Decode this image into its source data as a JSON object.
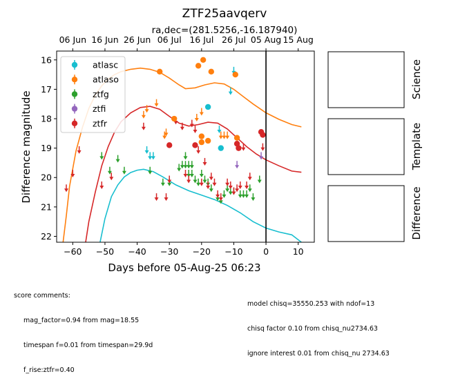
{
  "chart_data": {
    "type": "scatter",
    "title": "ZTF25aavqerv",
    "subtitle": "ra,dec=(281.5256,-16.187940)",
    "xlabel": "Days before 05-Aug-25 06:23",
    "ylabel": "Difference magnitude",
    "xlim": [
      -65,
      15
    ],
    "ylim": [
      22.2,
      15.7
    ],
    "x_ticks": [
      -60,
      -50,
      -40,
      -30,
      -20,
      -10,
      0,
      10
    ],
    "y_ticks": [
      16,
      17,
      18,
      19,
      20,
      21,
      22
    ],
    "top_axis_ticks": [
      {
        "x": -60,
        "label": "06 Jun"
      },
      {
        "x": -50,
        "label": "16 Jun"
      },
      {
        "x": -40,
        "label": "26 Jun"
      },
      {
        "x": -30,
        "label": "06 Jul"
      },
      {
        "x": -20,
        "label": "16 Jul"
      },
      {
        "x": -10,
        "label": "26 Jul"
      },
      {
        "x": 0,
        "label": "05 Aug"
      },
      {
        "x": 10,
        "label": "15 Aug"
      }
    ],
    "legend_placement": "top-left",
    "vline_x": 0,
    "series": [
      {
        "name": "atlasc",
        "color": "#17becf",
        "detections": [
          [
            -18,
            17.6
          ],
          [
            -14,
            19.0
          ]
        ],
        "upper_limits": [
          [
            -37,
            19.1
          ],
          [
            -36,
            19.3
          ],
          [
            -35,
            19.3
          ],
          [
            -14.5,
            18.4
          ],
          [
            -11,
            17.1
          ],
          [
            -10,
            16.4
          ]
        ]
      },
      {
        "name": "atlaso",
        "color": "#ff7f0e",
        "detections": [
          [
            -33,
            16.4
          ],
          [
            -28.5,
            18.0
          ],
          [
            -21,
            16.2
          ],
          [
            -19.5,
            16.0
          ],
          [
            -17,
            16.4
          ],
          [
            -9.5,
            16.5
          ],
          [
            -20,
            18.6
          ],
          [
            -20,
            18.8
          ],
          [
            -18,
            18.75
          ],
          [
            -9,
            18.65
          ]
        ],
        "upper_limits": [
          [
            -38,
            17.9
          ],
          [
            -37,
            17.7
          ],
          [
            -34,
            17.5
          ],
          [
            -31.5,
            18.6
          ],
          [
            -31,
            18.5
          ],
          [
            -21.5,
            18.0
          ],
          [
            -20,
            17.8
          ],
          [
            -14,
            18.6
          ],
          [
            -13,
            18.6
          ],
          [
            -12,
            18.6
          ]
        ]
      },
      {
        "name": "ztfg",
        "color": "#2ca02c",
        "detections": [],
        "upper_limits": [
          [
            -51,
            19.3
          ],
          [
            -48.5,
            19.8
          ],
          [
            -46,
            19.4
          ],
          [
            -44,
            19.8
          ],
          [
            -36,
            19.8
          ],
          [
            -32,
            20.2
          ],
          [
            -30,
            20.2
          ],
          [
            -27,
            19.7
          ],
          [
            -26,
            19.6
          ],
          [
            -25,
            19.3
          ],
          [
            -25,
            19.6
          ],
          [
            -24,
            19.6
          ],
          [
            -24,
            19.9
          ],
          [
            -23,
            19.6
          ],
          [
            -23,
            19.9
          ],
          [
            -22,
            20.1
          ],
          [
            -21,
            20.2
          ],
          [
            -20,
            19.9
          ],
          [
            -19,
            20.1
          ],
          [
            -18,
            20.2
          ],
          [
            -17,
            20.4
          ],
          [
            -15,
            20.7
          ],
          [
            -14,
            20.8
          ],
          [
            -13,
            20.6
          ],
          [
            -12,
            20.4
          ],
          [
            -11,
            20.5
          ],
          [
            -10,
            20.5
          ],
          [
            -8,
            20.6
          ],
          [
            -7,
            20.6
          ],
          [
            -6,
            20.6
          ],
          [
            -5,
            20.4
          ],
          [
            -4,
            20.7
          ],
          [
            -2,
            20.1
          ]
        ]
      },
      {
        "name": "ztfi",
        "color": "#9467bd",
        "detections": [],
        "upper_limits": [
          [
            -9,
            19.6
          ],
          [
            -1.5,
            19.3
          ]
        ]
      },
      {
        "name": "ztfr",
        "color": "#d62728",
        "detections": [
          [
            -30,
            18.9
          ],
          [
            -22,
            18.9
          ],
          [
            -9,
            18.85
          ],
          [
            -8.5,
            19.0
          ],
          [
            -1.5,
            18.45
          ],
          [
            -1,
            18.55
          ]
        ],
        "upper_limits": [
          [
            -62,
            20.4
          ],
          [
            -60,
            19.9
          ],
          [
            -58,
            19.1
          ],
          [
            -51,
            20.3
          ],
          [
            -48,
            20.0
          ],
          [
            -38,
            18.3
          ],
          [
            -34,
            20.7
          ],
          [
            -31,
            20.7
          ],
          [
            -30,
            20.1
          ],
          [
            -28,
            18.1
          ],
          [
            -26,
            18.3
          ],
          [
            -25,
            19.9
          ],
          [
            -24,
            20.1
          ],
          [
            -23,
            18.2
          ],
          [
            -22,
            18.4
          ],
          [
            -21,
            19.1
          ],
          [
            -20,
            20.2
          ],
          [
            -19,
            19.5
          ],
          [
            -18,
            20.3
          ],
          [
            -17,
            20.0
          ],
          [
            -16,
            20.2
          ],
          [
            -15,
            20.6
          ],
          [
            -14,
            20.7
          ],
          [
            -12,
            20.2
          ],
          [
            -11,
            20.3
          ],
          [
            -10,
            20.5
          ],
          [
            -9,
            20.4
          ],
          [
            -8,
            20.3
          ],
          [
            -7,
            19.0
          ],
          [
            -6,
            20.3
          ],
          [
            -5,
            20.0
          ],
          [
            -1,
            19.0
          ]
        ]
      }
    ],
    "model_curves": [
      {
        "name": "atlasc",
        "color": "#17becf",
        "points": [
          [
            -51.5,
            22.2
          ],
          [
            -50,
            21.4
          ],
          [
            -48,
            20.65
          ],
          [
            -46,
            20.25
          ],
          [
            -44,
            19.98
          ],
          [
            -42,
            19.83
          ],
          [
            -40,
            19.75
          ],
          [
            -38,
            19.72
          ],
          [
            -35,
            19.8
          ],
          [
            -32,
            19.98
          ],
          [
            -28,
            20.25
          ],
          [
            -24,
            20.45
          ],
          [
            -20,
            20.6
          ],
          [
            -16,
            20.75
          ],
          [
            -12,
            20.95
          ],
          [
            -8,
            21.2
          ],
          [
            -4,
            21.5
          ],
          [
            0,
            21.72
          ],
          [
            4,
            21.85
          ],
          [
            8,
            21.95
          ],
          [
            11,
            22.2
          ]
        ]
      },
      {
        "name": "atlaso",
        "color": "#ff7f0e",
        "points": [
          [
            -63,
            22.2
          ],
          [
            -62,
            21.3
          ],
          [
            -61,
            20.3
          ],
          [
            -59,
            19.1
          ],
          [
            -57,
            18.3
          ],
          [
            -55,
            17.65
          ],
          [
            -53,
            17.2
          ],
          [
            -51,
            16.88
          ],
          [
            -49,
            16.65
          ],
          [
            -47,
            16.5
          ],
          [
            -45,
            16.4
          ],
          [
            -42,
            16.32
          ],
          [
            -39,
            16.28
          ],
          [
            -36,
            16.32
          ],
          [
            -33,
            16.42
          ],
          [
            -30,
            16.62
          ],
          [
            -27,
            16.85
          ],
          [
            -25,
            16.98
          ],
          [
            -22,
            16.95
          ],
          [
            -19,
            16.85
          ],
          [
            -16,
            16.78
          ],
          [
            -13,
            16.82
          ],
          [
            -10,
            17.0
          ],
          [
            -7,
            17.25
          ],
          [
            -4,
            17.5
          ],
          [
            0,
            17.8
          ],
          [
            4,
            18.02
          ],
          [
            8,
            18.2
          ],
          [
            11,
            18.28
          ]
        ]
      },
      {
        "name": "ztfr",
        "color": "#d62728",
        "points": [
          [
            -56,
            22.2
          ],
          [
            -55,
            21.5
          ],
          [
            -53,
            20.5
          ],
          [
            -51,
            19.6
          ],
          [
            -49,
            18.95
          ],
          [
            -47,
            18.45
          ],
          [
            -45,
            18.1
          ],
          [
            -42,
            17.8
          ],
          [
            -39,
            17.62
          ],
          [
            -36,
            17.58
          ],
          [
            -33,
            17.68
          ],
          [
            -30,
            17.92
          ],
          [
            -27,
            18.15
          ],
          [
            -24,
            18.25
          ],
          [
            -21,
            18.2
          ],
          [
            -18,
            18.12
          ],
          [
            -15,
            18.15
          ],
          [
            -12,
            18.35
          ],
          [
            -9,
            18.65
          ],
          [
            -6,
            18.95
          ],
          [
            -3,
            19.2
          ],
          [
            0,
            19.4
          ],
          [
            4,
            19.6
          ],
          [
            8,
            19.78
          ],
          [
            11,
            19.82
          ]
        ]
      }
    ]
  },
  "panels": [
    {
      "label": "Science"
    },
    {
      "label": "Template"
    },
    {
      "label": "Difference"
    }
  ],
  "comments": {
    "header": "score comments:",
    "left_lines": [
      "mag_factor=0.94 from mag=18.55",
      "timespan f=0.01 from timespan=29.9d",
      "f_rise:ztfr=0.40"
    ],
    "right_lines": [
      "model chisq=35550.253 with ndof=13",
      "chisq factor 0.10 from chisq_nu2734.63",
      "ignore interest 0.01 from chisq_nu 2734.63"
    ]
  }
}
